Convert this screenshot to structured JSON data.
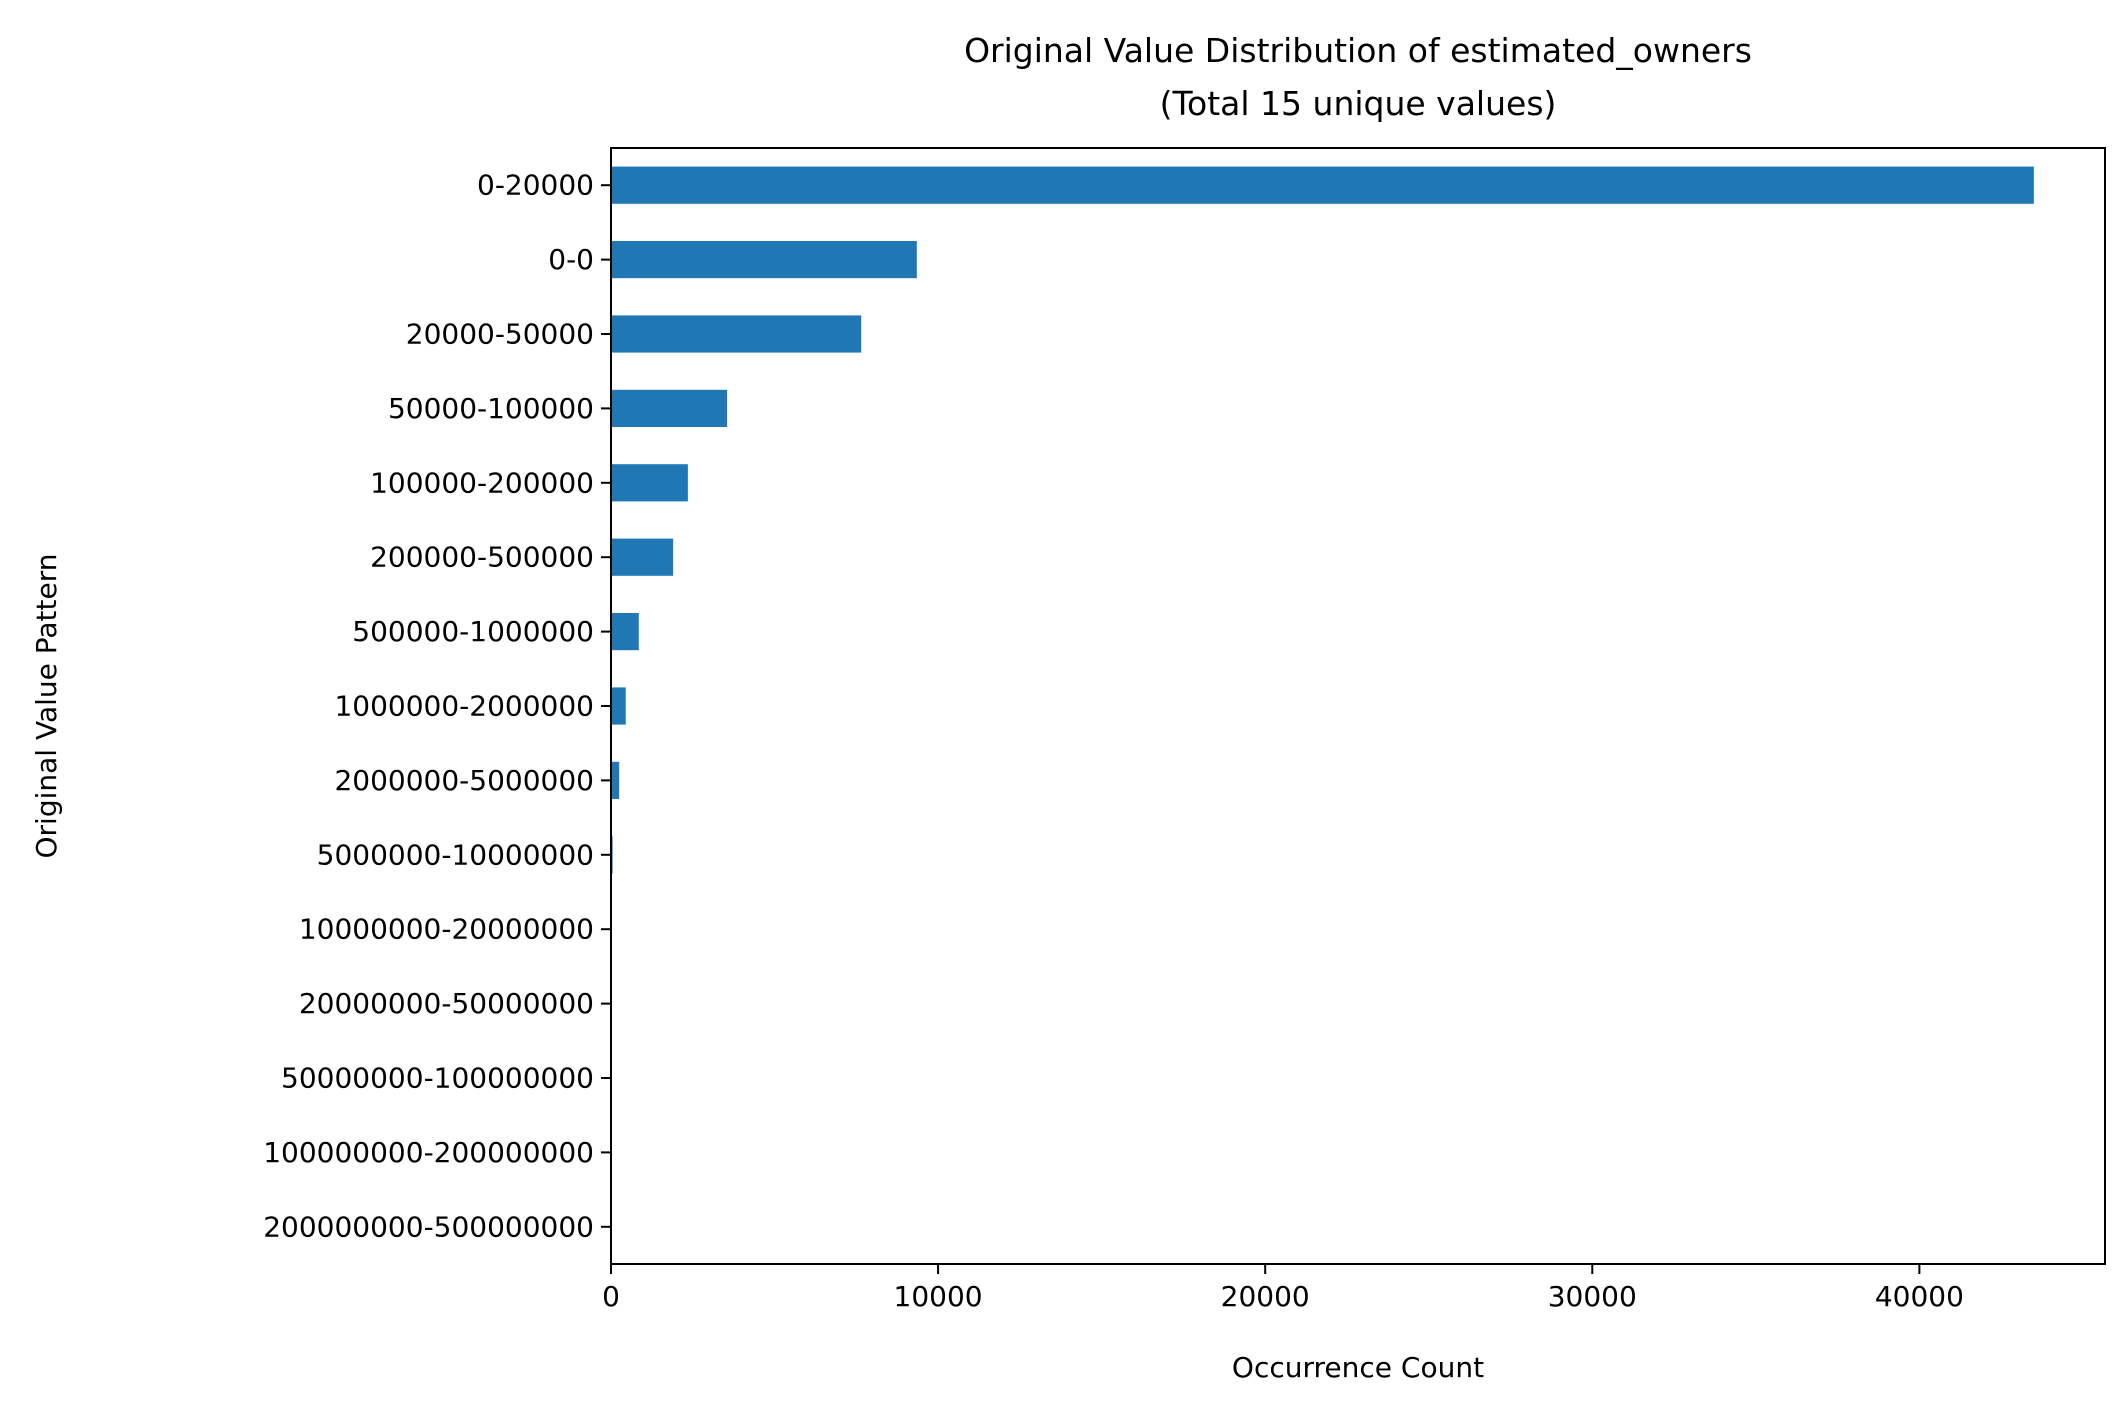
{
  "chart_data": {
    "type": "bar",
    "orientation": "horizontal",
    "title": [
      "Original Value Distribution of estimated_owners",
      "(Total 15 unique values)"
    ],
    "xlabel": "Occurrence Count",
    "ylabel": "Original Value Pattern",
    "categories": [
      "0-20000",
      "0-0",
      "20000-50000",
      "50000-100000",
      "100000-200000",
      "200000-500000",
      "500000-1000000",
      "1000000-2000000",
      "2000000-5000000",
      "5000000-10000000",
      "10000000-20000000",
      "20000000-50000000",
      "50000000-100000000",
      "100000000-200000000",
      "200000000-500000000"
    ],
    "values": [
      43500,
      9350,
      7650,
      3550,
      2350,
      1900,
      850,
      450,
      250,
      50,
      10,
      5,
      2,
      1,
      1
    ],
    "xticks": [
      0,
      10000,
      20000,
      30000,
      40000
    ],
    "xtick_labels": [
      "0",
      "10000",
      "20000",
      "30000",
      "40000"
    ],
    "xlim": [
      0,
      45675
    ],
    "grid": false,
    "legend": false,
    "bar_color": "#1f77b4"
  }
}
